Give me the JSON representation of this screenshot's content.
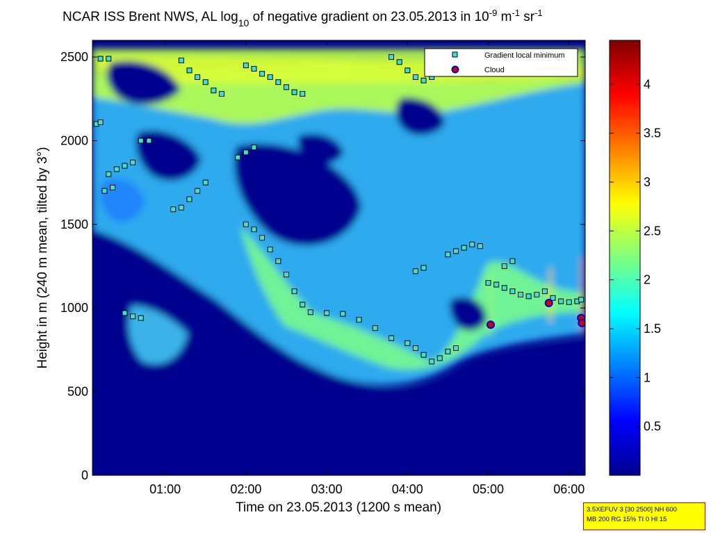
{
  "chart_data": {
    "type": "heatmap",
    "title": {
      "prefix": "NCAR ISS Brent NWS, AL log",
      "sub": "10",
      "middle": " of negative gradient on 23.05.2013 in 10",
      "sup1": "-9",
      "unit1": " m",
      "sup2": "-1",
      "unit2": " sr",
      "sup3": "-1"
    },
    "xlabel": "Time on 23.05.2013 (1200 s mean)",
    "ylabel": "Height in m (240 m mean, tilted by 3°)",
    "xlim": [
      0.1,
      6.2
    ],
    "ylim": [
      0,
      2600
    ],
    "x_ticks": [
      {
        "v": 1,
        "label": "01:00"
      },
      {
        "v": 2,
        "label": "02:00"
      },
      {
        "v": 3,
        "label": "03:00"
      },
      {
        "v": 4,
        "label": "04:00"
      },
      {
        "v": 5,
        "label": "05:00"
      },
      {
        "v": 6,
        "label": "06:00"
      }
    ],
    "y_ticks": [
      {
        "v": 0,
        "label": "0"
      },
      {
        "v": 500,
        "label": "500"
      },
      {
        "v": 1000,
        "label": "1000"
      },
      {
        "v": 1500,
        "label": "1500"
      },
      {
        "v": 2000,
        "label": "2000"
      },
      {
        "v": 2500,
        "label": "2500"
      }
    ],
    "colorbar": {
      "range": [
        0,
        4.45
      ],
      "ticks": [
        {
          "v": 0.5,
          "label": "0.5"
        },
        {
          "v": 1,
          "label": "1"
        },
        {
          "v": 1.5,
          "label": "1.5"
        },
        {
          "v": 2,
          "label": "2"
        },
        {
          "v": 2.5,
          "label": "2.5"
        },
        {
          "v": 3,
          "label": "3"
        },
        {
          "v": 3.5,
          "label": "3.5"
        },
        {
          "v": 4,
          "label": "4"
        }
      ],
      "colormap": "jet"
    },
    "legend": {
      "position": "top-right",
      "items": [
        {
          "label": "Gradient local minimum",
          "marker": "square",
          "color": "#40e0d0"
        },
        {
          "label": "Cloud",
          "marker": "circle",
          "color": "#d00000"
        }
      ]
    },
    "series": [
      {
        "name": "Gradient local minimum",
        "points": [
          [
            2.0,
            1500
          ],
          [
            2.1,
            1470
          ],
          [
            2.2,
            1420
          ],
          [
            2.3,
            1350
          ],
          [
            2.4,
            1280
          ],
          [
            2.5,
            1200
          ],
          [
            2.6,
            1100
          ],
          [
            2.7,
            1020
          ],
          [
            2.8,
            975
          ],
          [
            3.0,
            970
          ],
          [
            3.2,
            965
          ],
          [
            3.4,
            930
          ],
          [
            3.6,
            880
          ],
          [
            3.8,
            820
          ],
          [
            4.0,
            790
          ],
          [
            4.1,
            760
          ],
          [
            4.2,
            720
          ],
          [
            4.3,
            680
          ],
          [
            4.4,
            700
          ],
          [
            4.5,
            740
          ],
          [
            4.6,
            760
          ],
          [
            4.5,
            1320
          ],
          [
            4.6,
            1340
          ],
          [
            4.7,
            1360
          ],
          [
            4.8,
            1380
          ],
          [
            4.9,
            1370
          ],
          [
            5.0,
            1150
          ],
          [
            5.1,
            1140
          ],
          [
            5.2,
            1120
          ],
          [
            5.3,
            1100
          ],
          [
            5.4,
            1080
          ],
          [
            5.5,
            1070
          ],
          [
            5.6,
            1080
          ],
          [
            5.7,
            1100
          ],
          [
            5.8,
            1060
          ],
          [
            5.9,
            1040
          ],
          [
            6.0,
            1035
          ],
          [
            6.1,
            1040
          ],
          [
            6.15,
            1050
          ],
          [
            0.5,
            970
          ],
          [
            0.6,
            950
          ],
          [
            0.7,
            940
          ],
          [
            1.1,
            1590
          ],
          [
            1.2,
            1600
          ],
          [
            1.3,
            1650
          ],
          [
            1.4,
            1700
          ],
          [
            1.5,
            1750
          ],
          [
            0.3,
            1800
          ],
          [
            0.4,
            1830
          ],
          [
            0.5,
            1850
          ],
          [
            0.6,
            1870
          ],
          [
            0.7,
            2000
          ],
          [
            0.8,
            2000
          ],
          [
            0.15,
            2100
          ],
          [
            0.2,
            2110
          ],
          [
            1.9,
            1900
          ],
          [
            2.0,
            1930
          ],
          [
            2.1,
            1960
          ],
          [
            1.2,
            2480
          ],
          [
            1.3,
            2420
          ],
          [
            1.4,
            2380
          ],
          [
            1.5,
            2350
          ],
          [
            1.6,
            2300
          ],
          [
            1.7,
            2280
          ],
          [
            2.0,
            2450
          ],
          [
            2.1,
            2430
          ],
          [
            2.2,
            2400
          ],
          [
            2.3,
            2380
          ],
          [
            2.4,
            2350
          ],
          [
            2.5,
            2320
          ],
          [
            2.6,
            2290
          ],
          [
            2.7,
            2280
          ],
          [
            3.8,
            2500
          ],
          [
            3.9,
            2470
          ],
          [
            4.0,
            2420
          ],
          [
            4.1,
            2380
          ],
          [
            4.2,
            2360
          ],
          [
            4.3,
            2380
          ],
          [
            4.4,
            2400
          ],
          [
            5.2,
            1250
          ],
          [
            5.3,
            1280
          ],
          [
            4.1,
            1220
          ],
          [
            4.2,
            1240
          ],
          [
            0.25,
            1700
          ],
          [
            0.35,
            1720
          ],
          [
            0.2,
            2490
          ],
          [
            0.3,
            2490
          ]
        ]
      },
      {
        "name": "Cloud",
        "points": [
          [
            5.03,
            900
          ],
          [
            5.75,
            1030
          ],
          [
            6.15,
            940
          ],
          [
            6.16,
            910
          ]
        ]
      }
    ]
  },
  "info_box": {
    "line1": "3.5XEFUV 3 [30 2500] NH 600",
    "line2": "MB 200 RG 15% TI 0 HI 15"
  }
}
